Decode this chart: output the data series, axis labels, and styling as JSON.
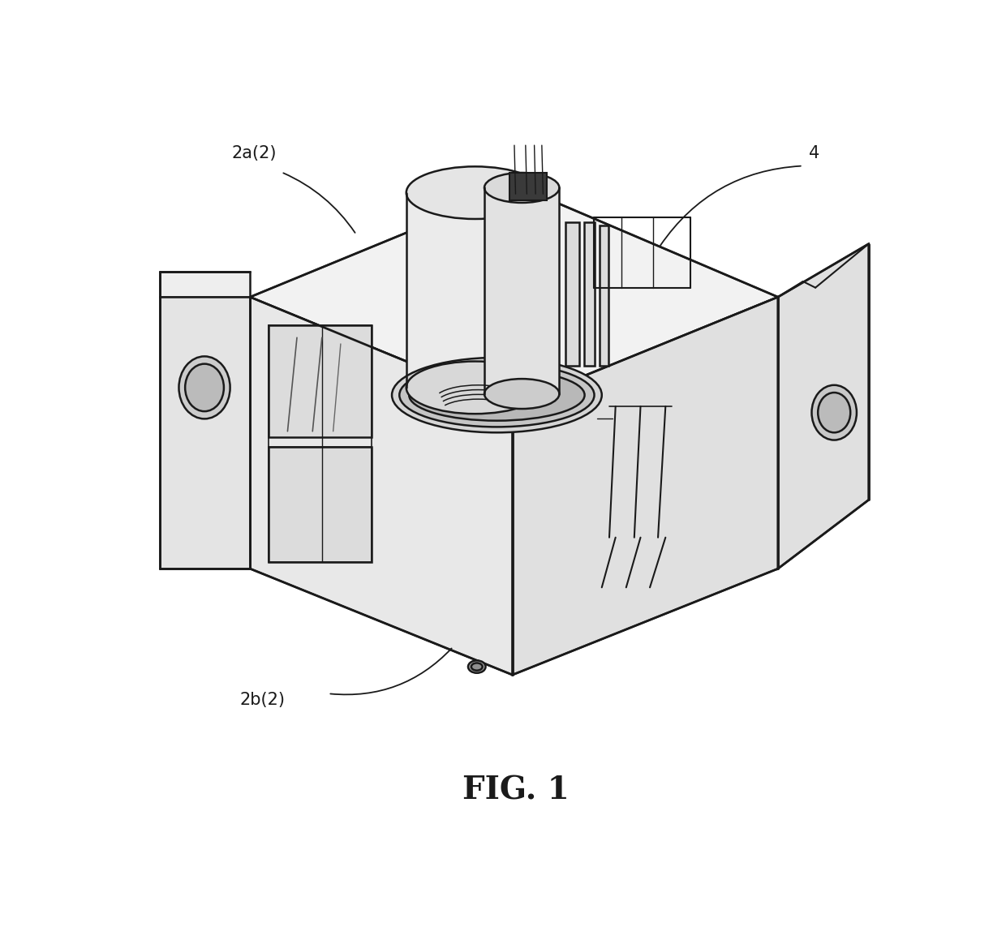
{
  "title": "FIG. 1",
  "title_fontsize": 28,
  "title_fontweight": "bold",
  "background_color": "#ffffff",
  "line_color": "#1a1a1a",
  "line_width": 1.8,
  "label_2a": "2a(2)",
  "label_2b": "2b(2)",
  "label_4": "4",
  "label_fontsize": 15,
  "fig_width": 12.4,
  "fig_height": 11.59,
  "dpi": 100
}
